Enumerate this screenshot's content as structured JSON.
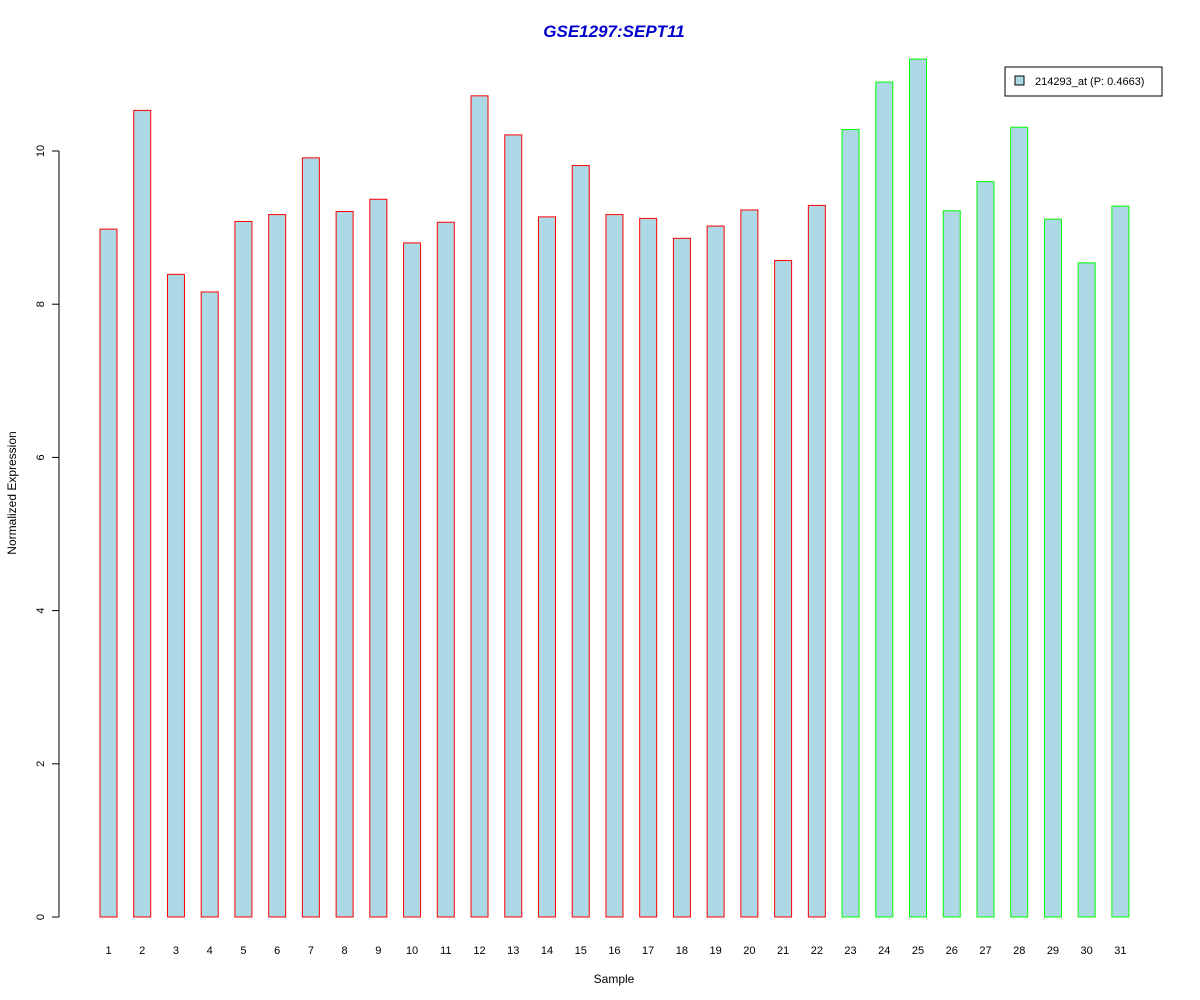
{
  "chart_data": {
    "type": "bar",
    "title": "GSE1297:SEPT11",
    "xlabel": "Sample",
    "ylabel": "Normalized Expression",
    "ylim": [
      0,
      11.2
    ],
    "yticks": [
      "0",
      "2",
      "4",
      "6",
      "8",
      "10"
    ],
    "categories": [
      "1",
      "2",
      "3",
      "4",
      "5",
      "6",
      "7",
      "8",
      "9",
      "10",
      "11",
      "12",
      "13",
      "14",
      "15",
      "16",
      "17",
      "18",
      "19",
      "20",
      "21",
      "22",
      "23",
      "24",
      "25",
      "26",
      "27",
      "28",
      "29",
      "30",
      "31"
    ],
    "series": [
      {
        "name": "214293_at (P: 0.4663)",
        "values": [
          8.98,
          10.53,
          8.39,
          8.16,
          9.08,
          9.17,
          9.91,
          9.21,
          9.37,
          8.8,
          9.07,
          10.72,
          10.21,
          9.14,
          9.81,
          9.17,
          9.12,
          8.86,
          9.02,
          9.23,
          8.57,
          9.29,
          10.28,
          10.9,
          11.2,
          9.22,
          9.6,
          10.31,
          9.11,
          8.54,
          9.28
        ]
      }
    ],
    "groups": [
      1,
      1,
      1,
      1,
      1,
      1,
      1,
      1,
      1,
      1,
      1,
      1,
      1,
      1,
      1,
      1,
      1,
      1,
      1,
      1,
      1,
      1,
      2,
      2,
      2,
      2,
      2,
      2,
      2,
      2,
      2
    ],
    "legend_position": "top-right",
    "grid": false
  },
  "colors": {
    "bar_fill": "#add8e6",
    "group1_border": "#ff0000",
    "group2_border": "#00ff00",
    "title": "#0000cc",
    "axis": "#000000"
  }
}
